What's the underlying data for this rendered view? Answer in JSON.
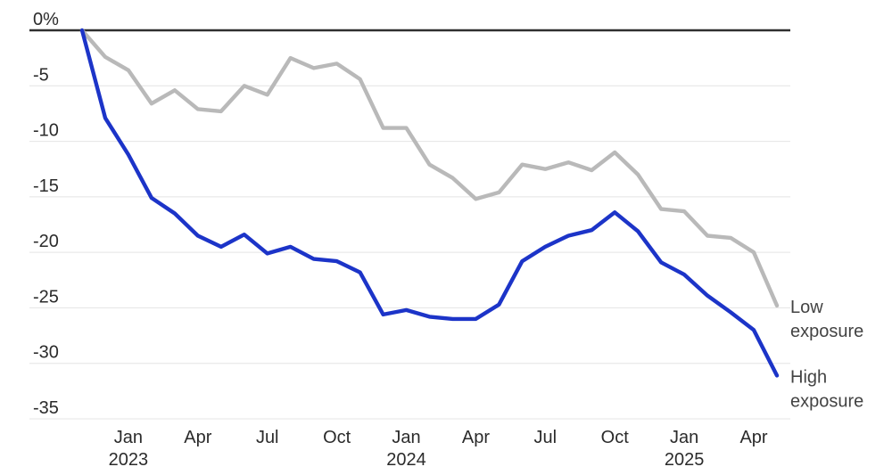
{
  "chart_data": {
    "type": "line",
    "title": "",
    "unit": "%",
    "grid": true,
    "ylim": [
      -35,
      0
    ],
    "legend_position": "right-end-labels",
    "x": [
      "Nov 2022",
      "Dec 2022",
      "Jan 2023",
      "Feb 2023",
      "Mar 2023",
      "Apr 2023",
      "May 2023",
      "Jun 2023",
      "Jul 2023",
      "Aug 2023",
      "Sep 2023",
      "Oct 2023",
      "Nov 2023",
      "Dec 2023",
      "Jan 2024",
      "Feb 2024",
      "Mar 2024",
      "Apr 2024",
      "May 2024",
      "Jun 2024",
      "Jul 2024",
      "Aug 2024",
      "Sep 2024",
      "Oct 2024",
      "Nov 2024",
      "Dec 2024",
      "Jan 2025",
      "Feb 2025",
      "Mar 2025",
      "Apr 2025",
      "May 2025"
    ],
    "series": [
      {
        "name": "Low exposure",
        "label_lines": [
          "Low",
          "exposure"
        ],
        "color": "#b9b9b9",
        "values": [
          0,
          -2.4,
          -3.6,
          -6.6,
          -5.4,
          -7.1,
          -7.3,
          -5.0,
          -5.8,
          -2.5,
          -3.4,
          -3.0,
          -4.4,
          -8.8,
          -8.8,
          -12.1,
          -13.3,
          -15.2,
          -14.6,
          -12.1,
          -12.5,
          -11.9,
          -12.6,
          -11.0,
          -13.0,
          -16.1,
          -16.3,
          -18.5,
          -18.7,
          -20.0,
          -24.8
        ]
      },
      {
        "name": "High exposure",
        "label_lines": [
          "High",
          "exposure"
        ],
        "color": "#1c34c8",
        "values": [
          0,
          -7.9,
          -11.2,
          -15.1,
          -16.5,
          -18.5,
          -19.5,
          -18.4,
          -20.1,
          -19.5,
          -20.6,
          -20.8,
          -21.8,
          -25.6,
          -25.2,
          -25.8,
          -26.0,
          -26.0,
          -24.7,
          -20.8,
          -19.5,
          -18.5,
          -18.0,
          -16.4,
          -18.1,
          -20.9,
          -22.0,
          -23.9,
          -25.4,
          -27.0,
          -31.1
        ]
      }
    ],
    "y_ticks": [
      {
        "value": 0,
        "label": "0%"
      },
      {
        "value": -5,
        "label": "-5"
      },
      {
        "value": -10,
        "label": "-10"
      },
      {
        "value": -15,
        "label": "-15"
      },
      {
        "value": -20,
        "label": "-20"
      },
      {
        "value": -25,
        "label": "-25"
      },
      {
        "value": -30,
        "label": "-30"
      },
      {
        "value": -35,
        "label": "-35"
      }
    ],
    "x_ticks": [
      {
        "month_index": 2,
        "label": "Jan",
        "year": "2023"
      },
      {
        "month_index": 5,
        "label": "Apr",
        "year": ""
      },
      {
        "month_index": 8,
        "label": "Jul",
        "year": ""
      },
      {
        "month_index": 11,
        "label": "Oct",
        "year": ""
      },
      {
        "month_index": 14,
        "label": "Jan",
        "year": "2024"
      },
      {
        "month_index": 17,
        "label": "Apr",
        "year": ""
      },
      {
        "month_index": 20,
        "label": "Jul",
        "year": ""
      },
      {
        "month_index": 23,
        "label": "Oct",
        "year": ""
      },
      {
        "month_index": 26,
        "label": "Jan",
        "year": "2025"
      },
      {
        "month_index": 29,
        "label": "Apr",
        "year": ""
      }
    ],
    "colors": {
      "high_exposure_line": "#1c34c8",
      "low_exposure_line": "#b9b9b9",
      "grid_line": "#e4e4e4",
      "zero_line": "#2f2f2f",
      "tick_text": "#2b2b2b",
      "end_label_text": "#434343",
      "background": "#ffffff"
    }
  }
}
